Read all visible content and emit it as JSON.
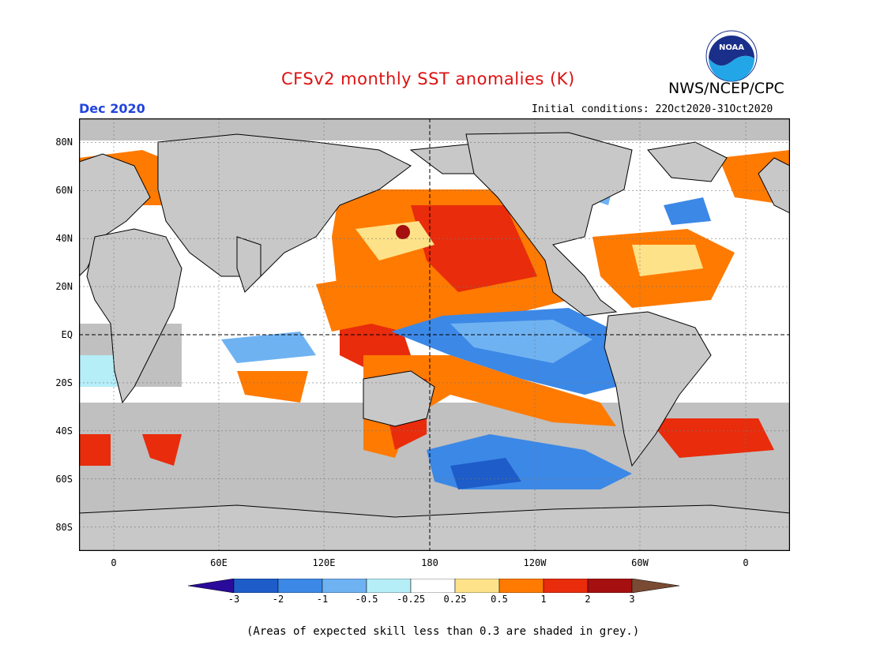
{
  "header": {
    "title": "CFSv2 monthly SST anomalies (K)",
    "agency": "NWS/NCEP/CPC",
    "period": "Dec 2020",
    "initial_conditions": "Initial conditions: 22Oct2020-31Oct2020",
    "logo_text": "NOAA"
  },
  "map": {
    "projection": "equirectangular",
    "land_color": "#c8c8c8",
    "low_skill_color": "#c0c0c0",
    "lat_ticks": [
      "80N",
      "60N",
      "40N",
      "20N",
      "EQ",
      "20S",
      "40S",
      "60S",
      "80S"
    ],
    "lon_ticks": [
      "0",
      "60E",
      "120E",
      "180",
      "120W",
      "60W",
      "0"
    ]
  },
  "colorbar": {
    "labels": [
      "-3",
      "-2",
      "-1",
      "-0.5",
      "-0.25",
      "0.25",
      "0.5",
      "1",
      "2",
      "3"
    ],
    "colors": [
      "#2a0a9a",
      "#1d5cc9",
      "#3c88e6",
      "#6fb2f2",
      "#b6eef8",
      "#ffffff",
      "#fee289",
      "#ff7a00",
      "#e82c0c",
      "#a50f0f",
      "#7a4a33"
    ]
  },
  "footer": {
    "note": "(Areas of expected skill less than 0.3 are shaded in grey.)"
  }
}
